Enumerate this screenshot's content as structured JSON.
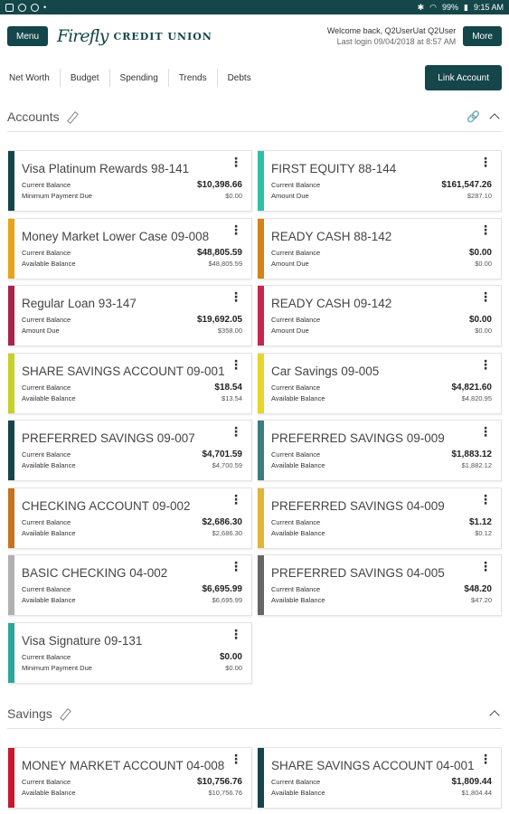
{
  "status_bar": {
    "battery": "99%",
    "time": "9:15 AM"
  },
  "header": {
    "menu_label": "Menu",
    "logo_script": "Firefly",
    "logo_text": "CREDIT UNION",
    "welcome": "Welcome back, Q2UserUat Q2User",
    "last_login": "Last login 09/04/2018 at 8:57 AM",
    "more_label": "More"
  },
  "nav": {
    "tabs": [
      "Net Worth",
      "Budget",
      "Spending",
      "Trends",
      "Debts"
    ],
    "link_account_label": "Link Account"
  },
  "sections": [
    {
      "title": "Accounts"
    },
    {
      "title": "Savings"
    }
  ],
  "colors": {
    "brand": "#14464a",
    "teal": "#2ebfa5",
    "orange": "#e8a31a",
    "dark_orange": "#d4821a",
    "crimson": "#a8244a",
    "lime": "#c6d12a",
    "yellow": "#e6d52a",
    "steel": "#3d7d80",
    "brown": "#c5731f",
    "gold": "#e0b53a",
    "gray": "#b0b0b0",
    "dark_gray": "#666666",
    "red": "#c8182e"
  },
  "accounts": [
    {
      "name": "Visa Platinum Rewards 98-141",
      "color": "#14464a",
      "l1": "Current Balance",
      "v1": "$10,398.66",
      "l2": "Minimum Payment Due",
      "v2": "$0.00"
    },
    {
      "name": "FIRST EQUITY 88-144",
      "color": "#2ebfa5",
      "l1": "Current Balance",
      "v1": "$161,547.26",
      "l2": "Amount Due",
      "v2": "$287.10"
    },
    {
      "name": "Money Market Lower Case 09-008",
      "color": "#e8a31a",
      "l1": "Current Balance",
      "v1": "$48,805.59",
      "l2": "Available Balance",
      "v2": "$48,805.59"
    },
    {
      "name": "READY CASH 88-142",
      "color": "#d4821a",
      "l1": "Current Balance",
      "v1": "$0.00",
      "l2": "Amount Due",
      "v2": "$0.00"
    },
    {
      "name": "Regular Loan 93-147",
      "color": "#a8244a",
      "l1": "Current Balance",
      "v1": "$19,692.05",
      "l2": "Amount Due",
      "v2": "$358.00"
    },
    {
      "name": "READY CASH 09-142",
      "color": "#c8264e",
      "l1": "Current Balance",
      "v1": "$0.00",
      "l2": "Amount Due",
      "v2": "$0.00"
    },
    {
      "name": "SHARE SAVINGS ACCOUNT 09-001",
      "color": "#c6d12a",
      "l1": "Current Balance",
      "v1": "$18.54",
      "l2": "Available Balance",
      "v2": "$13.54"
    },
    {
      "name": "Car Savings 09-005",
      "color": "#e6d52a",
      "l1": "Current Balance",
      "v1": "$4,821.60",
      "l2": "Available Balance",
      "v2": "$4,820.95"
    },
    {
      "name": "PREFERRED SAVINGS 09-007",
      "color": "#14464a",
      "l1": "Current Balance",
      "v1": "$4,701.59",
      "l2": "Available Balance",
      "v2": "$4,700.59"
    },
    {
      "name": "PREFERRED SAVINGS 09-009",
      "color": "#3d7d80",
      "l1": "Current Balance",
      "v1": "$1,883.12",
      "l2": "Available Balance",
      "v2": "$1,882.12"
    },
    {
      "name": "CHECKING ACCOUNT 09-002",
      "color": "#c5731f",
      "l1": "Current Balance",
      "v1": "$2,686.30",
      "l2": "Available Balance",
      "v2": "$2,686.30"
    },
    {
      "name": "PREFERRED SAVINGS 04-009",
      "color": "#e0b53a",
      "l1": "Current Balance",
      "v1": "$1.12",
      "l2": "Available Balance",
      "v2": "$0.12"
    },
    {
      "name": "BASIC CHECKING 04-002",
      "color": "#b0b0b0",
      "l1": "Current Balance",
      "v1": "$6,695.99",
      "l2": "Available Balance",
      "v2": "$6,695.99"
    },
    {
      "name": "PREFERRED SAVINGS 04-005",
      "color": "#666666",
      "l1": "Current Balance",
      "v1": "$48.20",
      "l2": "Available Balance",
      "v2": "$47.20"
    },
    {
      "name": "Visa Signature 09-131",
      "color": "#2ba79a",
      "l1": "Current Balance",
      "v1": "$0.00",
      "l2": "Minimum Payment Due",
      "v2": "$0.00"
    }
  ],
  "savings": [
    {
      "name": "MONEY MARKET ACCOUNT 04-008",
      "color": "#c8182e",
      "l1": "Current Balance",
      "v1": "$10,756.76",
      "l2": "Available Balance",
      "v2": "$10,756.76"
    },
    {
      "name": "SHARE SAVINGS ACCOUNT 04-001",
      "color": "#14464a",
      "l1": "Current Balance",
      "v1": "$1,809.44",
      "l2": "Available Balance",
      "v2": "$1,804.44"
    }
  ]
}
